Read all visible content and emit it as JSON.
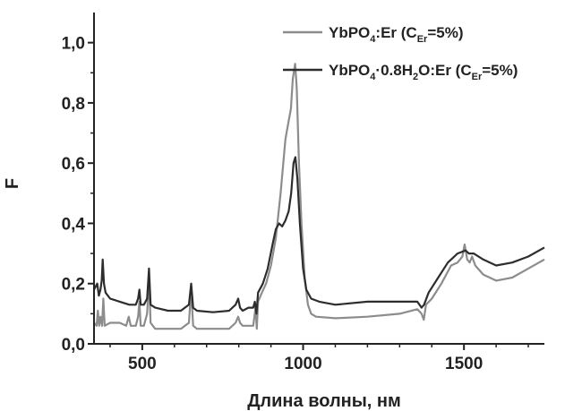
{
  "chart_data": {
    "type": "line",
    "title": "",
    "xlabel": "Длина волны, нм",
    "ylabel": "F",
    "xlim": [
      350,
      1750
    ],
    "ylim": [
      0.0,
      1.1
    ],
    "x_ticks": [
      500,
      1000,
      1500
    ],
    "x_tick_labels": [
      "500",
      "1000",
      "1500"
    ],
    "y_ticks": [
      0.0,
      0.2,
      0.4,
      0.6,
      0.8,
      1.0
    ],
    "y_tick_labels": [
      "0,0",
      "0,2",
      "0,4",
      "0,6",
      "0,8",
      "1,0"
    ],
    "grid": false,
    "legend_position": "top-right",
    "series": [
      {
        "name": "YbPO4:Er (CEr=5%)",
        "legend_label": {
          "main": "YbPO",
          "sub1": "4",
          "mid": ":Er (C",
          "sub2": "Er",
          "tail": "=5%)"
        },
        "color": "#8c8c8c",
        "points": [
          [
            350,
            0.07
          ],
          [
            358,
            0.06
          ],
          [
            362,
            0.11
          ],
          [
            366,
            0.06
          ],
          [
            370,
            0.09
          ],
          [
            375,
            0.06
          ],
          [
            379,
            0.15
          ],
          [
            383,
            0.06
          ],
          [
            400,
            0.07
          ],
          [
            430,
            0.07
          ],
          [
            450,
            0.06
          ],
          [
            458,
            0.09
          ],
          [
            464,
            0.06
          ],
          [
            480,
            0.06
          ],
          [
            487,
            0.09
          ],
          [
            491,
            0.14
          ],
          [
            495,
            0.06
          ],
          [
            505,
            0.06
          ],
          [
            515,
            0.1
          ],
          [
            521,
            0.22
          ],
          [
            526,
            0.07
          ],
          [
            540,
            0.05
          ],
          [
            580,
            0.05
          ],
          [
            620,
            0.05
          ],
          [
            645,
            0.07
          ],
          [
            652,
            0.18
          ],
          [
            658,
            0.06
          ],
          [
            670,
            0.05
          ],
          [
            720,
            0.05
          ],
          [
            770,
            0.05
          ],
          [
            790,
            0.07
          ],
          [
            798,
            0.09
          ],
          [
            804,
            0.07
          ],
          [
            812,
            0.06
          ],
          [
            830,
            0.06
          ],
          [
            845,
            0.06
          ],
          [
            852,
            0.12
          ],
          [
            856,
            0.05
          ],
          [
            860,
            0.14
          ],
          [
            872,
            0.17
          ],
          [
            885,
            0.2
          ],
          [
            900,
            0.26
          ],
          [
            915,
            0.35
          ],
          [
            930,
            0.5
          ],
          [
            945,
            0.68
          ],
          [
            955,
            0.74
          ],
          [
            962,
            0.78
          ],
          [
            968,
            0.88
          ],
          [
            975,
            0.93
          ],
          [
            980,
            0.85
          ],
          [
            987,
            0.6
          ],
          [
            995,
            0.4
          ],
          [
            1005,
            0.22
          ],
          [
            1015,
            0.13
          ],
          [
            1025,
            0.1
          ],
          [
            1040,
            0.09
          ],
          [
            1100,
            0.085
          ],
          [
            1200,
            0.09
          ],
          [
            1300,
            0.1
          ],
          [
            1355,
            0.115
          ],
          [
            1368,
            0.1
          ],
          [
            1375,
            0.08
          ],
          [
            1382,
            0.13
          ],
          [
            1400,
            0.15
          ],
          [
            1430,
            0.2
          ],
          [
            1460,
            0.26
          ],
          [
            1480,
            0.27
          ],
          [
            1495,
            0.29
          ],
          [
            1502,
            0.33
          ],
          [
            1510,
            0.28
          ],
          [
            1518,
            0.27
          ],
          [
            1525,
            0.29
          ],
          [
            1535,
            0.26
          ],
          [
            1560,
            0.23
          ],
          [
            1600,
            0.21
          ],
          [
            1650,
            0.22
          ],
          [
            1700,
            0.25
          ],
          [
            1750,
            0.28
          ]
        ]
      },
      {
        "name": "YbPO4·0.8H2O:Er (CEr=5%)",
        "legend_label": {
          "main": "YbPO",
          "sub1": "4",
          "mid": "·0.8H",
          "sub2": "2",
          "mid2": "O:Er (C",
          "sub3": "Er",
          "tail": "=5%)"
        },
        "color": "#2d2d2d",
        "points": [
          [
            350,
            0.18
          ],
          [
            360,
            0.2
          ],
          [
            365,
            0.16
          ],
          [
            370,
            0.18
          ],
          [
            374,
            0.21
          ],
          [
            377,
            0.28
          ],
          [
            381,
            0.2
          ],
          [
            386,
            0.17
          ],
          [
            400,
            0.15
          ],
          [
            430,
            0.14
          ],
          [
            460,
            0.13
          ],
          [
            480,
            0.13
          ],
          [
            487,
            0.15
          ],
          [
            491,
            0.18
          ],
          [
            495,
            0.13
          ],
          [
            505,
            0.13
          ],
          [
            515,
            0.15
          ],
          [
            521,
            0.25
          ],
          [
            526,
            0.13
          ],
          [
            540,
            0.12
          ],
          [
            580,
            0.11
          ],
          [
            620,
            0.11
          ],
          [
            645,
            0.13
          ],
          [
            652,
            0.2
          ],
          [
            658,
            0.12
          ],
          [
            670,
            0.11
          ],
          [
            720,
            0.105
          ],
          [
            770,
            0.11
          ],
          [
            790,
            0.13
          ],
          [
            798,
            0.15
          ],
          [
            804,
            0.12
          ],
          [
            812,
            0.11
          ],
          [
            830,
            0.12
          ],
          [
            845,
            0.12
          ],
          [
            850,
            0.14
          ],
          [
            855,
            0.1
          ],
          [
            860,
            0.17
          ],
          [
            875,
            0.2
          ],
          [
            890,
            0.25
          ],
          [
            905,
            0.33
          ],
          [
            915,
            0.38
          ],
          [
            925,
            0.4
          ],
          [
            935,
            0.39
          ],
          [
            945,
            0.41
          ],
          [
            955,
            0.44
          ],
          [
            963,
            0.5
          ],
          [
            970,
            0.6
          ],
          [
            976,
            0.62
          ],
          [
            982,
            0.55
          ],
          [
            990,
            0.4
          ],
          [
            1000,
            0.25
          ],
          [
            1010,
            0.18
          ],
          [
            1025,
            0.15
          ],
          [
            1050,
            0.14
          ],
          [
            1100,
            0.13
          ],
          [
            1200,
            0.14
          ],
          [
            1300,
            0.14
          ],
          [
            1355,
            0.14
          ],
          [
            1368,
            0.12
          ],
          [
            1376,
            0.13
          ],
          [
            1390,
            0.17
          ],
          [
            1420,
            0.22
          ],
          [
            1450,
            0.27
          ],
          [
            1480,
            0.3
          ],
          [
            1505,
            0.31
          ],
          [
            1515,
            0.3
          ],
          [
            1530,
            0.3
          ],
          [
            1560,
            0.28
          ],
          [
            1600,
            0.26
          ],
          [
            1650,
            0.27
          ],
          [
            1700,
            0.29
          ],
          [
            1750,
            0.32
          ]
        ]
      }
    ]
  }
}
